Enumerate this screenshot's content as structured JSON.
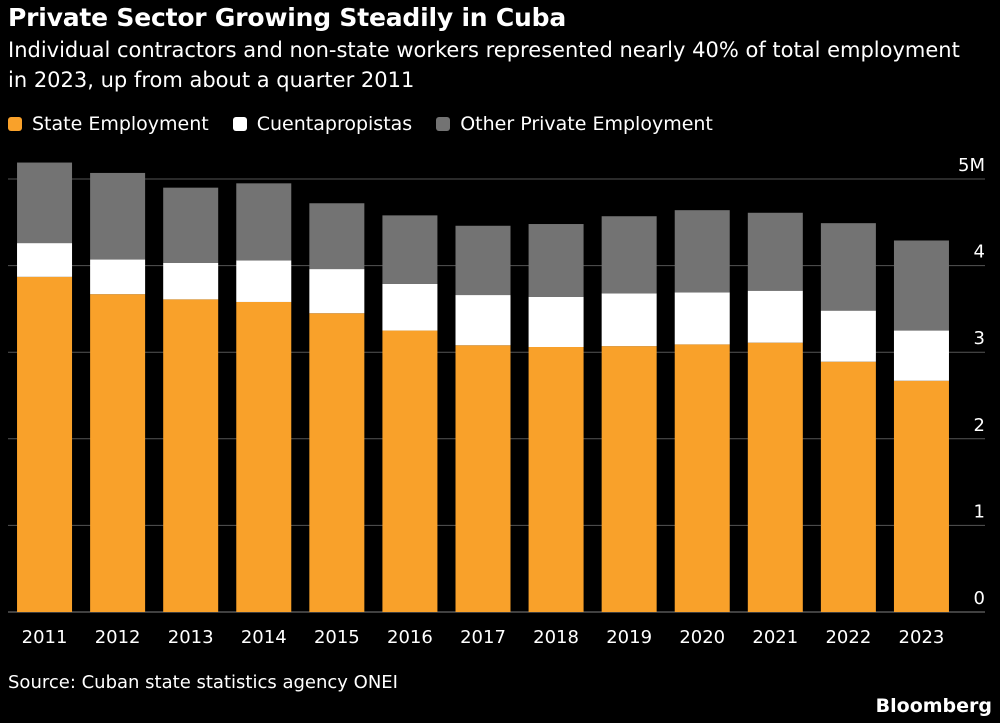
{
  "title": "Private Sector Growing Steadily in Cuba",
  "subtitle": "Individual contractors and non-state workers represented nearly 40% of total employment in 2023, up from about a quarter 2011",
  "legend": [
    {
      "label": "State Employment",
      "color": "#f9a12a"
    },
    {
      "label": "Cuentapropistas",
      "color": "#ffffff"
    },
    {
      "label": "Other Private Employment",
      "color": "#737373"
    }
  ],
  "source": "Source: Cuban state statistics agency ONEI",
  "brand": "Bloomberg",
  "chart_data": {
    "type": "bar",
    "stacked": true,
    "categories": [
      "2011",
      "2012",
      "2013",
      "2014",
      "2015",
      "2016",
      "2017",
      "2018",
      "2019",
      "2020",
      "2021",
      "2022",
      "2023"
    ],
    "series": [
      {
        "name": "State Employment",
        "color": "#f9a12a",
        "values": [
          3.87,
          3.67,
          3.61,
          3.58,
          3.45,
          3.25,
          3.08,
          3.06,
          3.07,
          3.09,
          3.11,
          2.89,
          2.67
        ]
      },
      {
        "name": "Cuentapropistas",
        "color": "#ffffff",
        "values": [
          0.39,
          0.4,
          0.42,
          0.48,
          0.51,
          0.54,
          0.58,
          0.58,
          0.61,
          0.6,
          0.6,
          0.59,
          0.58
        ]
      },
      {
        "name": "Other Private Employment",
        "color": "#737373",
        "values": [
          0.93,
          1.0,
          0.87,
          0.89,
          0.76,
          0.79,
          0.8,
          0.84,
          0.89,
          0.95,
          0.9,
          1.01,
          1.04
        ]
      }
    ],
    "y_ticks": [
      "0",
      "1",
      "2",
      "3",
      "4",
      "5M"
    ],
    "ylim": [
      0,
      5
    ],
    "grid": true
  }
}
